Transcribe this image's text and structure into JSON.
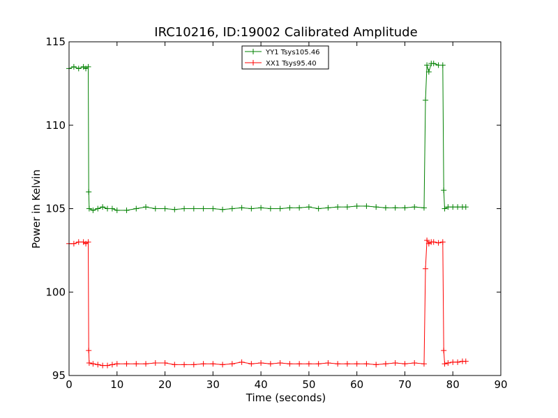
{
  "chart_data": {
    "type": "line",
    "title": "IRC10216, ID:19002 Calibrated Amplitude",
    "xlabel": "Time (seconds)",
    "ylabel": "Power in Kelvin",
    "xlim": [
      0,
      90
    ],
    "ylim": [
      95,
      115
    ],
    "xticks": [
      "0",
      "10",
      "20",
      "30",
      "40",
      "50",
      "60",
      "70",
      "80",
      "90"
    ],
    "yticks": [
      "95",
      "100",
      "105",
      "110",
      "115"
    ],
    "grid": false,
    "legend_position": "top-center",
    "marker": "plus",
    "series": [
      {
        "name": "YY1 Tsys105.46",
        "color": "#008000",
        "x": [
          0,
          1,
          2,
          3,
          3.5,
          4,
          4.1,
          4.2,
          5,
          6,
          7,
          8,
          9,
          10,
          12,
          14,
          16,
          18,
          20,
          22,
          24,
          26,
          28,
          30,
          32,
          34,
          36,
          38,
          40,
          42,
          44,
          46,
          48,
          50,
          52,
          54,
          56,
          58,
          60,
          62,
          64,
          66,
          68,
          70,
          72,
          74,
          74.3,
          74.6,
          75,
          75.5,
          76,
          77,
          77.9,
          78.1,
          78.3,
          79,
          80,
          81,
          82,
          82.7
        ],
        "values": [
          113.4,
          113.5,
          113.4,
          113.5,
          113.4,
          113.5,
          106.0,
          105.0,
          104.9,
          105.0,
          105.1,
          105.0,
          105.0,
          104.9,
          104.9,
          105.0,
          105.1,
          105.0,
          105.0,
          104.95,
          105.0,
          105.0,
          105.0,
          105.0,
          104.95,
          105.0,
          105.05,
          105.0,
          105.05,
          105.0,
          105.0,
          105.05,
          105.05,
          105.1,
          105.0,
          105.05,
          105.1,
          105.1,
          105.15,
          105.15,
          105.1,
          105.05,
          105.05,
          105.05,
          105.1,
          105.05,
          111.5,
          113.6,
          113.2,
          113.7,
          113.7,
          113.6,
          113.6,
          106.1,
          105.0,
          105.1,
          105.1,
          105.1,
          105.1,
          105.1
        ]
      },
      {
        "name": "XX1 Tsys95.40",
        "color": "#ff0000",
        "x": [
          0,
          1,
          2,
          3,
          3.5,
          4,
          4.1,
          4.2,
          5,
          6,
          7,
          8,
          9,
          10,
          12,
          14,
          16,
          18,
          20,
          22,
          24,
          26,
          28,
          30,
          32,
          34,
          36,
          38,
          40,
          42,
          44,
          46,
          48,
          50,
          52,
          54,
          56,
          58,
          60,
          62,
          64,
          66,
          68,
          70,
          72,
          74,
          74.3,
          74.6,
          75,
          75.5,
          76,
          77,
          77.9,
          78.1,
          78.3,
          79,
          80,
          81,
          82,
          82.7
        ],
        "values": [
          102.9,
          102.9,
          103.0,
          103.0,
          102.9,
          103.0,
          96.5,
          95.75,
          95.7,
          95.65,
          95.6,
          95.6,
          95.65,
          95.7,
          95.7,
          95.7,
          95.7,
          95.75,
          95.75,
          95.65,
          95.65,
          95.65,
          95.7,
          95.7,
          95.65,
          95.7,
          95.8,
          95.7,
          95.75,
          95.7,
          95.75,
          95.7,
          95.7,
          95.7,
          95.7,
          95.75,
          95.7,
          95.7,
          95.7,
          95.7,
          95.65,
          95.7,
          95.75,
          95.7,
          95.75,
          95.7,
          101.4,
          103.1,
          102.9,
          103.0,
          103.0,
          102.95,
          103.0,
          96.5,
          95.7,
          95.75,
          95.8,
          95.8,
          95.85,
          95.85
        ]
      }
    ]
  }
}
